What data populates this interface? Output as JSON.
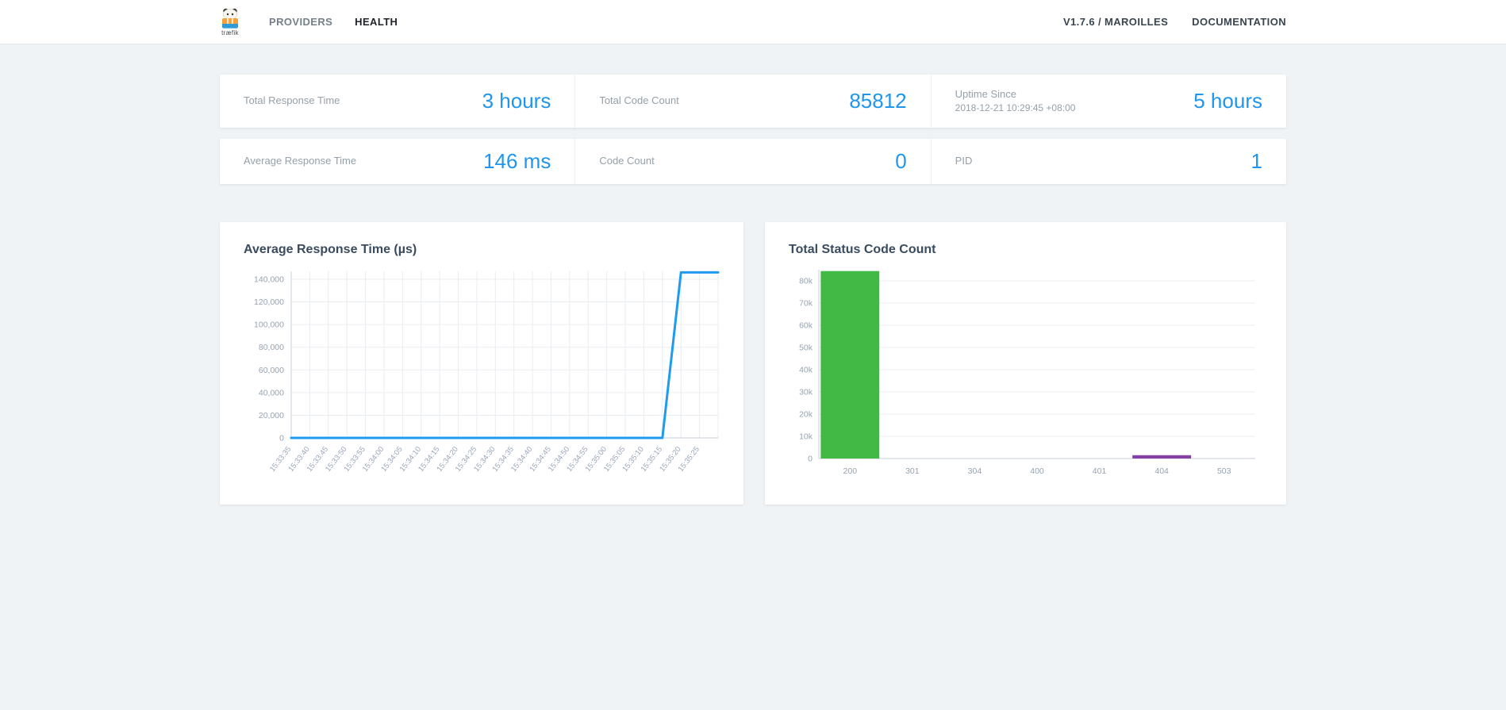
{
  "navbar": {
    "logo_text": "træfik",
    "items": [
      {
        "label": "PROVIDERS"
      },
      {
        "label": "HEALTH"
      }
    ],
    "right_items": [
      {
        "label": "V1.7.6 / MAROILLES"
      },
      {
        "label": "DOCUMENTATION"
      }
    ]
  },
  "stats": {
    "row1": [
      {
        "label": "Total Response Time",
        "value": "3 hours"
      },
      {
        "label": "Total Code Count",
        "value": "85812"
      },
      {
        "label": "Uptime Since",
        "sublabel": "2018-12-21 10:29:45 +08:00",
        "value": "5 hours"
      }
    ],
    "row2": [
      {
        "label": "Average Response Time",
        "value": "146 ms"
      },
      {
        "label": "Code Count",
        "value": "0"
      },
      {
        "label": "PID",
        "value": "1"
      }
    ]
  },
  "colors": {
    "accent_blue": "#1e96ee",
    "line_blue": "#1e9bf0",
    "bar_green": "#42b845",
    "bar_purple": "#8641a4",
    "grid": "#e9edf1",
    "axis": "#c9d2da",
    "tick_text": "#96a3b3"
  },
  "chart_data": [
    {
      "type": "line",
      "title": "Average Response Time (µs)",
      "x": [
        "15:33:35",
        "15:33:40",
        "15:33:45",
        "15:33:50",
        "15:33:55",
        "15:34:00",
        "15:34:05",
        "15:34:10",
        "15:34:15",
        "15:34:20",
        "15:34:25",
        "15:34:30",
        "15:34:35",
        "15:34:40",
        "15:34:45",
        "15:34:50",
        "15:34:55",
        "15:35:00",
        "15:35:05",
        "15:35:10",
        "15:35:15",
        "15:35:20",
        "15:35:25"
      ],
      "values": [
        0,
        0,
        0,
        0,
        0,
        0,
        0,
        0,
        0,
        0,
        0,
        0,
        0,
        0,
        0,
        0,
        0,
        0,
        0,
        0,
        0,
        146000,
        146000
      ],
      "ylim": [
        0,
        147000
      ],
      "yticks": [
        0,
        20000,
        40000,
        60000,
        80000,
        100000,
        120000,
        140000
      ],
      "ytick_labels": [
        "0",
        "20,000",
        "40,000",
        "60,000",
        "80,000",
        "100,000",
        "120,000",
        "140,000"
      ],
      "line_color": "#1e9bf0",
      "grid": "both",
      "legend": "none"
    },
    {
      "type": "bar",
      "title": "Total Status Code Count",
      "categories": [
        "200",
        "301",
        "304",
        "400",
        "401",
        "404",
        "503"
      ],
      "values": [
        84400,
        0,
        0,
        0,
        0,
        1500,
        0
      ],
      "bar_colors": [
        "#42b845",
        "#42b845",
        "#42b845",
        "#42b845",
        "#42b845",
        "#8641a4",
        "#42b845"
      ],
      "ylim": [
        0,
        85000
      ],
      "yticks": [
        0,
        10000,
        20000,
        30000,
        40000,
        50000,
        60000,
        70000,
        80000
      ],
      "ytick_labels": [
        "0",
        "10k",
        "20k",
        "30k",
        "40k",
        "50k",
        "60k",
        "70k",
        "80k"
      ],
      "grid": "horizontal",
      "legend": "none"
    }
  ]
}
